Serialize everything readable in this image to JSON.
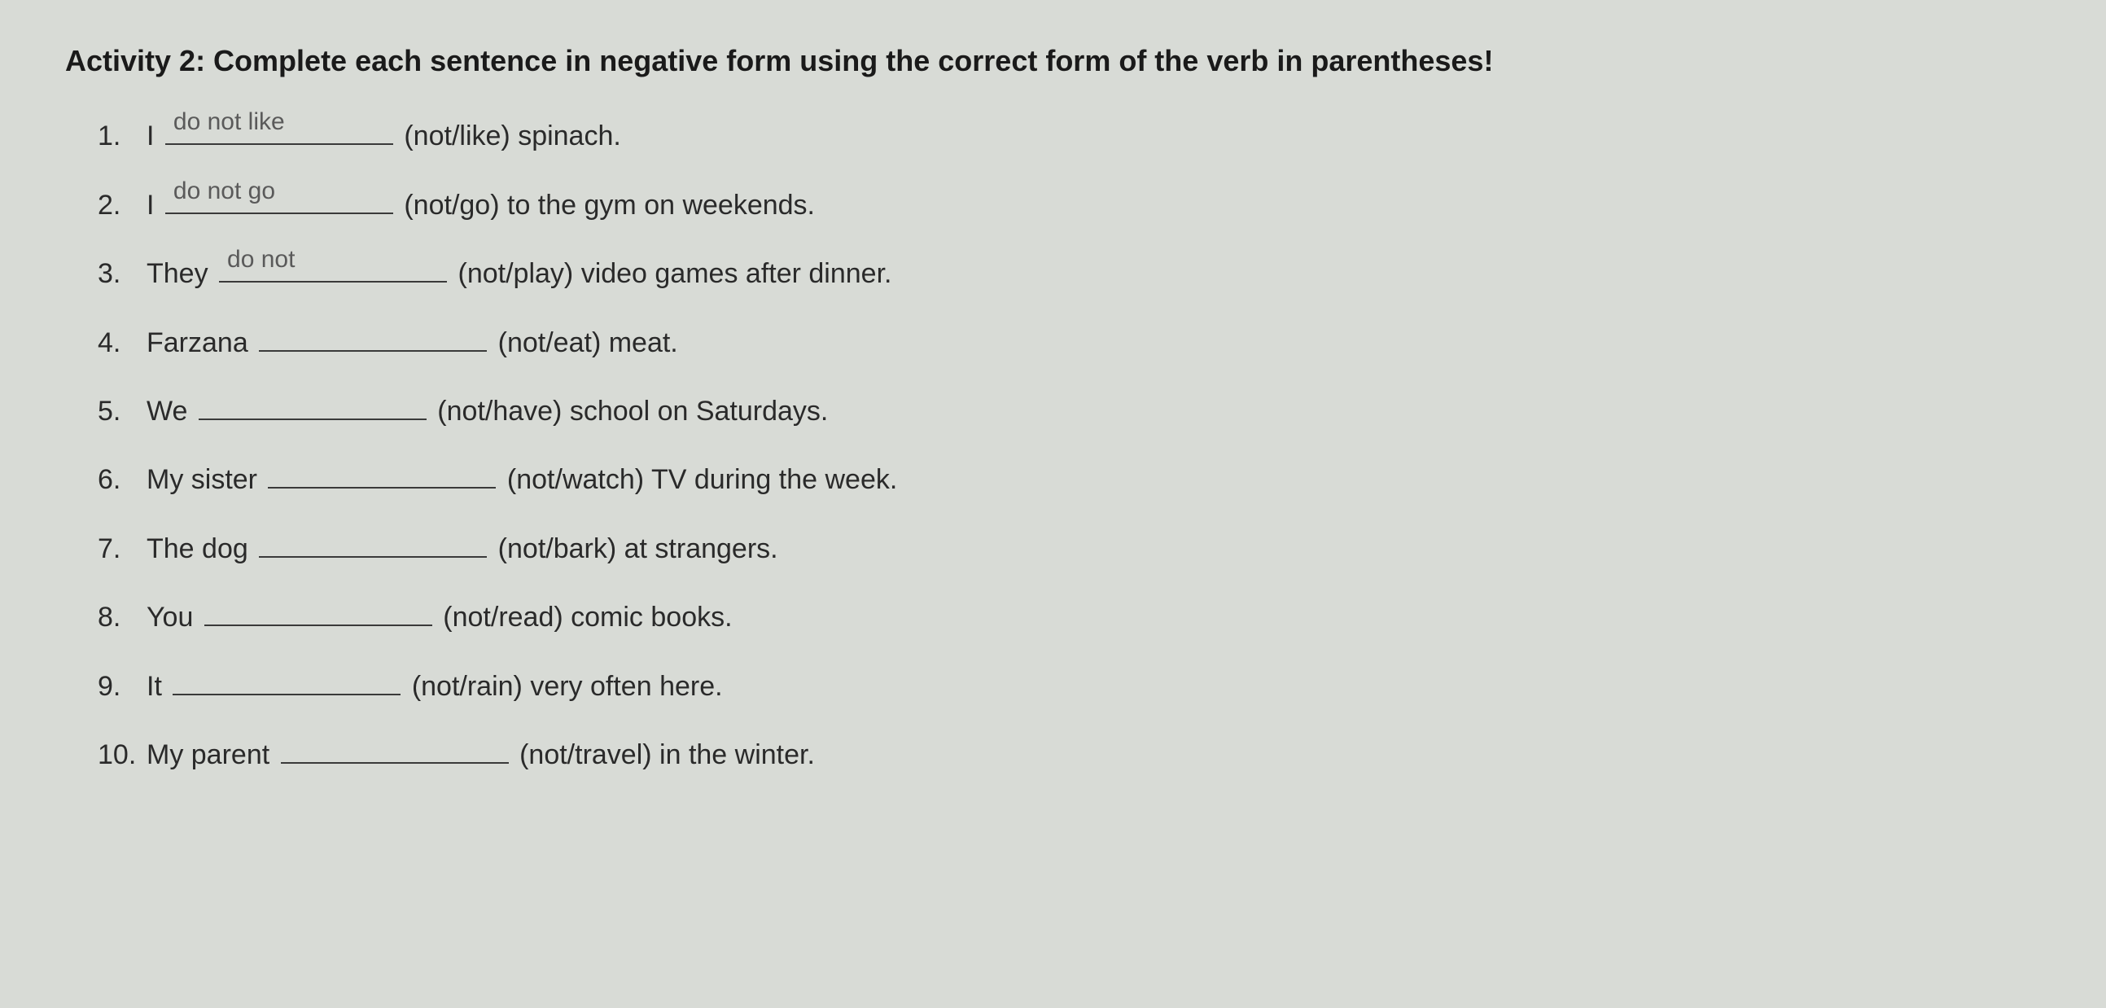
{
  "activity": {
    "title": "Activity 2: Complete each sentence in negative form using the correct form of the verb in parentheses!",
    "questions": [
      {
        "number": "1.",
        "before": "I",
        "answer": "do not like",
        "hint": "(not/like)",
        "after": "spinach."
      },
      {
        "number": "2.",
        "before": "I",
        "answer": "do not go",
        "hint": "(not/go)",
        "after": "to the gym on weekends."
      },
      {
        "number": "3.",
        "before": "They",
        "answer": "do not",
        "hint": "(not/play)",
        "after": "video games after dinner."
      },
      {
        "number": "4.",
        "before": "Farzana",
        "answer": "",
        "hint": "(not/eat)",
        "after": "meat."
      },
      {
        "number": "5.",
        "before": "We",
        "answer": "",
        "hint": "(not/have)",
        "after": "school on Saturdays."
      },
      {
        "number": "6.",
        "before": "My sister",
        "answer": "",
        "hint": "(not/watch)",
        "after": "TV during the week."
      },
      {
        "number": "7.",
        "before": "The dog",
        "answer": "",
        "hint": "(not/bark)",
        "after": "at strangers."
      },
      {
        "number": "8.",
        "before": "You",
        "answer": "",
        "hint": "(not/read)",
        "after": "comic books."
      },
      {
        "number": "9.",
        "before": "It",
        "answer": "",
        "hint": "(not/rain)",
        "after": "very often here."
      },
      {
        "number": "10.",
        "before": "My parent",
        "answer": "",
        "hint": "(not/travel)",
        "after": "in the winter."
      }
    ]
  },
  "styling": {
    "background_color": "#d8dbd6",
    "text_color": "#2a2a2a",
    "title_color": "#1a1a1a",
    "handwriting_color": "#5a5a5a",
    "title_fontsize": 36,
    "question_fontsize": 34,
    "handwriting_fontsize": 30,
    "blank_min_width": 280,
    "blank_border_color": "#3a3a3a"
  }
}
